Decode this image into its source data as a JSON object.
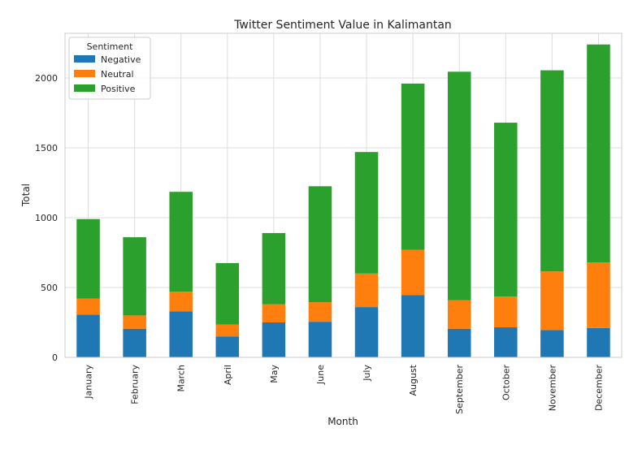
{
  "chart_data": {
    "type": "bar",
    "stacked": true,
    "title": "Twitter Sentiment Value in Kalimantan",
    "xlabel": "Month",
    "ylabel": "Total",
    "ylim": [
      0,
      2320
    ],
    "yticks": [
      0,
      500,
      1000,
      1500,
      2000
    ],
    "grid": true,
    "legend": {
      "title": "Sentiment",
      "placement": "top-left"
    },
    "categories": [
      "January",
      "February",
      "March",
      "April",
      "May",
      "June",
      "July",
      "August",
      "September",
      "October",
      "November",
      "December"
    ],
    "series": [
      {
        "name": "Negative",
        "color": "#1f77b4",
        "values": [
          305,
          205,
          330,
          150,
          250,
          255,
          360,
          445,
          205,
          215,
          195,
          210
        ]
      },
      {
        "name": "Neutral",
        "color": "#ff7f0e",
        "values": [
          115,
          95,
          140,
          85,
          130,
          140,
          240,
          325,
          205,
          220,
          420,
          470
        ]
      },
      {
        "name": "Positive",
        "color": "#2ca02c",
        "values": [
          570,
          560,
          715,
          440,
          510,
          830,
          870,
          1190,
          1635,
          1245,
          1440,
          1560
        ]
      }
    ]
  }
}
